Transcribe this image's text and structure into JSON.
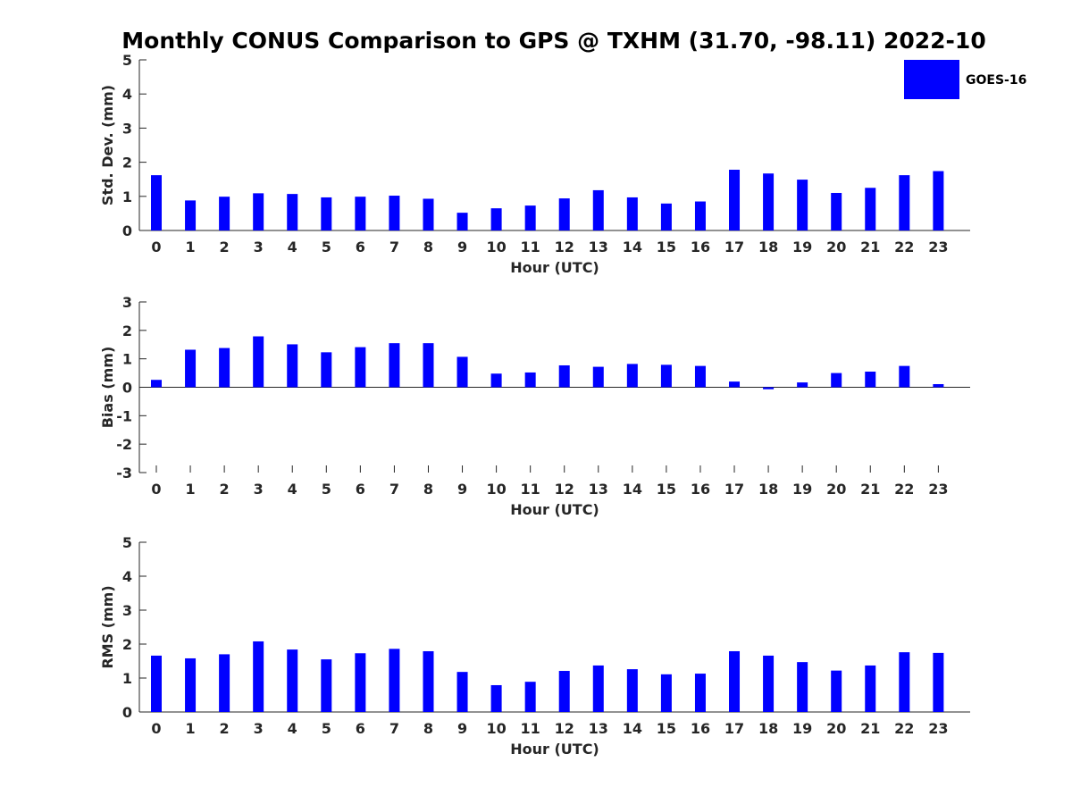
{
  "title": "Monthly CONUS Comparison to GPS @ TXHM (31.70, -98.11) 2022-10",
  "legend": {
    "label": "GOES-16",
    "color": "#0000ff",
    "position": "top-right"
  },
  "colors": {
    "bar": "#0000ff",
    "axis": "#262626"
  },
  "chart_data": [
    {
      "type": "bar",
      "series": [
        {
          "name": "GOES-16",
          "values": [
            1.62,
            0.88,
            0.99,
            1.09,
            1.07,
            0.97,
            0.99,
            1.02,
            0.93,
            0.52,
            0.65,
            0.73,
            0.94,
            1.18,
            0.97,
            0.79,
            0.85,
            1.78,
            1.67,
            1.49,
            1.1,
            1.25,
            1.62,
            1.74
          ]
        }
      ],
      "categories": [
        "0",
        "1",
        "2",
        "3",
        "4",
        "5",
        "6",
        "7",
        "8",
        "9",
        "10",
        "11",
        "12",
        "13",
        "14",
        "15",
        "16",
        "17",
        "18",
        "19",
        "20",
        "21",
        "22",
        "23"
      ],
      "xlabel": "Hour (UTC)",
      "ylabel": "Std. Dev. (mm)",
      "ylim": [
        0,
        5
      ],
      "yticks": [
        "0",
        "1",
        "2",
        "3",
        "4",
        "5"
      ],
      "grid": false
    },
    {
      "type": "bar",
      "series": [
        {
          "name": "GOES-16",
          "values": [
            0.26,
            1.32,
            1.38,
            1.79,
            1.51,
            1.23,
            1.41,
            1.55,
            1.55,
            1.07,
            0.48,
            0.52,
            0.77,
            0.72,
            0.82,
            0.79,
            0.75,
            0.2,
            -0.07,
            0.17,
            0.5,
            0.55,
            0.75,
            0.11
          ]
        }
      ],
      "categories": [
        "0",
        "1",
        "2",
        "3",
        "4",
        "5",
        "6",
        "7",
        "8",
        "9",
        "10",
        "11",
        "12",
        "13",
        "14",
        "15",
        "16",
        "17",
        "18",
        "19",
        "20",
        "21",
        "22",
        "23"
      ],
      "xlabel": "Hour (UTC)",
      "ylabel": "Bias (mm)",
      "ylim": [
        -3,
        3
      ],
      "yticks": [
        "-3",
        "-2",
        "-1",
        "0",
        "1",
        "2",
        "3"
      ],
      "grid": false
    },
    {
      "type": "bar",
      "series": [
        {
          "name": "GOES-16",
          "values": [
            1.66,
            1.58,
            1.7,
            2.08,
            1.84,
            1.55,
            1.73,
            1.86,
            1.79,
            1.18,
            0.79,
            0.89,
            1.21,
            1.37,
            1.26,
            1.11,
            1.13,
            1.79,
            1.66,
            1.47,
            1.22,
            1.37,
            1.76,
            1.74
          ]
        }
      ],
      "categories": [
        "0",
        "1",
        "2",
        "3",
        "4",
        "5",
        "6",
        "7",
        "8",
        "9",
        "10",
        "11",
        "12",
        "13",
        "14",
        "15",
        "16",
        "17",
        "18",
        "19",
        "20",
        "21",
        "22",
        "23"
      ],
      "xlabel": "Hour (UTC)",
      "ylabel": "RMS (mm)",
      "ylim": [
        0,
        5
      ],
      "yticks": [
        "0",
        "1",
        "2",
        "3",
        "4",
        "5"
      ],
      "grid": false
    }
  ]
}
